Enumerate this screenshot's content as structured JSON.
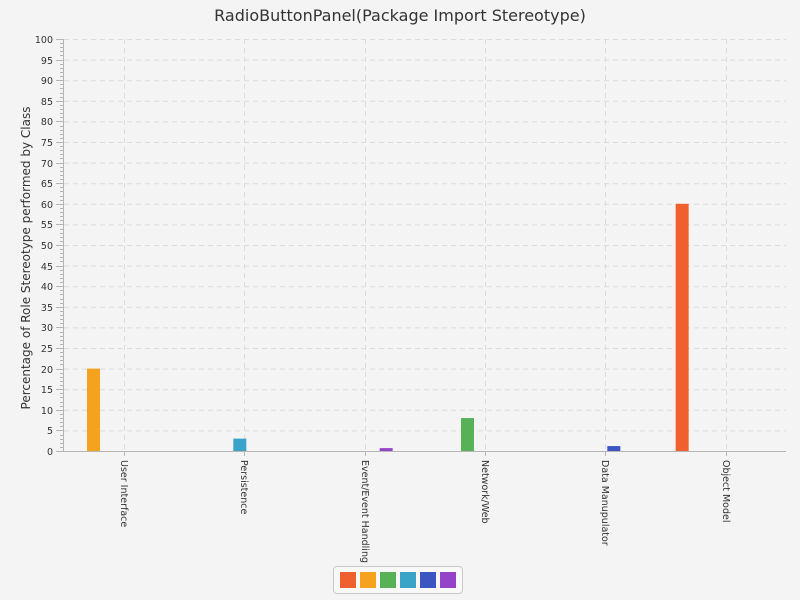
{
  "chart_data": {
    "type": "bar",
    "title": "RadioButtonPanel(Package Import Stereotype)",
    "xlabel": "",
    "ylabel": "Percentage of Role Stereotype performed by Class",
    "ylim": [
      0,
      100
    ],
    "y_major_ticks": [
      "0",
      "5",
      "10",
      "15",
      "20",
      "25",
      "30",
      "35",
      "40",
      "45",
      "50",
      "55",
      "60",
      "65",
      "70",
      "75",
      "80",
      "85",
      "90",
      "95",
      "100"
    ],
    "grid": true,
    "legend_position": "bottom-center",
    "categories": [
      "User Interface",
      "Persistence",
      "Event/Event Handling",
      "Network/Web",
      "Data Manupulator",
      "Object Model"
    ],
    "series": [
      {
        "color": "#f0602e",
        "values": [
          0,
          0,
          0,
          0,
          0,
          60
        ]
      },
      {
        "color": "#f5a31f",
        "values": [
          20,
          0,
          0,
          0,
          0,
          0
        ]
      },
      {
        "color": "#57b157",
        "values": [
          0,
          0,
          0,
          8,
          0,
          0
        ]
      },
      {
        "color": "#3aa3c8",
        "values": [
          0,
          3,
          0,
          0,
          0,
          0
        ]
      },
      {
        "color": "#3d55c0",
        "values": [
          0,
          0,
          0,
          0,
          1.2,
          0
        ]
      },
      {
        "color": "#9443c8",
        "values": [
          0,
          0,
          0.7,
          0,
          0,
          0
        ]
      }
    ]
  }
}
